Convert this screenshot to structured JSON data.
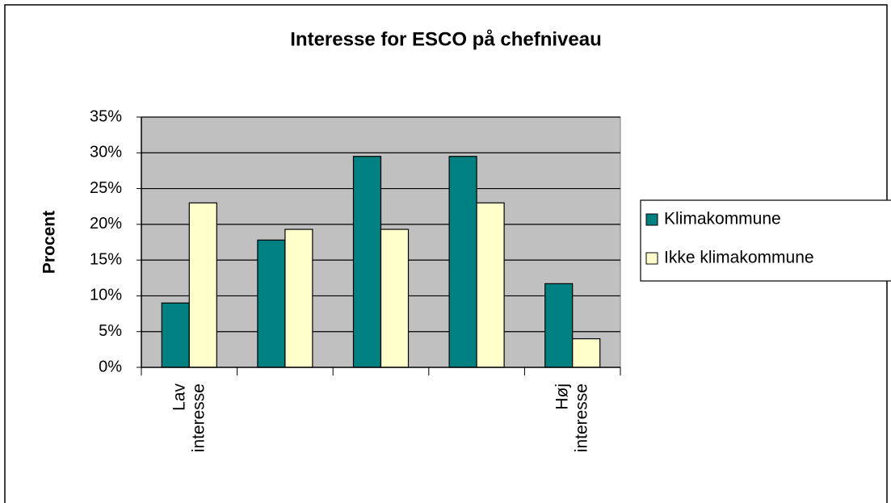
{
  "chart_data": {
    "type": "bar",
    "title": "Interesse for ESCO på chefniveau",
    "y_label": "Procent",
    "categories": [
      "Lav interesse",
      null,
      null,
      null,
      "Høj interesse"
    ],
    "series": [
      {
        "name": "Klimakommune",
        "color": "#008080",
        "values": [
          9,
          17.8,
          29.5,
          29.5,
          11.7
        ]
      },
      {
        "name": "Ikke klimakommune",
        "color": "#ffffcc",
        "values": [
          23,
          19.3,
          19.3,
          23,
          4
        ]
      }
    ],
    "ylim": [
      0,
      35
    ],
    "yticks": [
      {
        "value": 0,
        "label": "0%"
      },
      {
        "value": 5,
        "label": "5%"
      },
      {
        "value": 10,
        "label": "10%"
      },
      {
        "value": 15,
        "label": "15%"
      },
      {
        "value": 20,
        "label": "20%"
      },
      {
        "value": 25,
        "label": "25%"
      },
      {
        "value": 30,
        "label": "30%"
      },
      {
        "value": 35,
        "label": "35%"
      }
    ],
    "grid": true,
    "plot_background": "#c0c0c0",
    "legend": "right"
  }
}
